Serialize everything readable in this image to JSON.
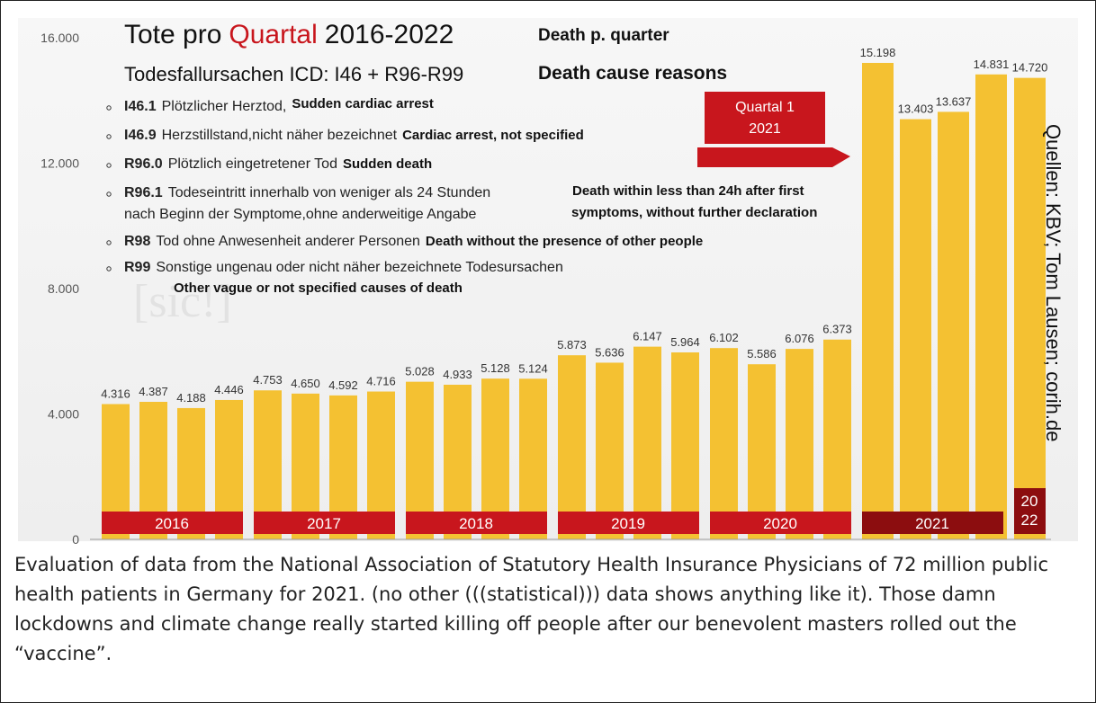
{
  "chart_data": {
    "type": "bar",
    "title_parts": [
      "Tote pro",
      "Quartal",
      "2016-2022"
    ],
    "title_en": "Death p. quarter",
    "subtitle": "Todesfallursachen ICD: I46 + R96-R99",
    "subtitle_en": "Death cause reasons",
    "causes": [
      {
        "code": "I46.1",
        "german": [
          "Plötzlicher Herztod,"
        ],
        "english": [
          "Sudden cardiac arrest"
        ]
      },
      {
        "code": "I46.9",
        "german": [
          "Herzstillstand,nicht näher bezeichnet"
        ],
        "english": [
          "Cardiac arrest, not specified"
        ]
      },
      {
        "code": "R96.0",
        "german": [
          "Plötzlich eingetretener Tod"
        ],
        "english": [
          "Sudden death"
        ]
      },
      {
        "code": "R96.1",
        "german": [
          "Todeseintritt innerhalb von weniger als 24 Stunden",
          "nach Beginn der Symptome,ohne anderweitige Angabe"
        ],
        "english": [
          "Death within less than 24h after first",
          "symptoms, without further declaration"
        ]
      },
      {
        "code": "R98",
        "german": [
          "Tod ohne Anwesenheit anderer Personen"
        ],
        "english": [
          "Death without the presence of other people"
        ]
      },
      {
        "code": "R99",
        "german": [
          "Sonstige ungenau oder nicht näher bezeichnete Todesursachen"
        ],
        "english": [
          "Other vague or not specified causes of death"
        ]
      }
    ],
    "quarter_note": [
      "Quartal 1",
      "2021"
    ],
    "watermark": "[sic!]",
    "source": "Quellen:  KBV; Tom Lausen; corih.de",
    "categories": [
      null,
      null,
      null,
      null,
      null,
      null,
      null,
      null,
      null,
      null,
      null,
      null,
      null,
      null,
      null,
      null,
      null,
      null,
      null,
      null,
      null,
      null,
      null,
      null,
      null
    ],
    "values": [
      4316,
      4387,
      4188,
      4446,
      4753,
      4650,
      4592,
      4716,
      5028,
      4933,
      5128,
      5124,
      5873,
      5636,
      6147,
      5964,
      6102,
      5586,
      6076,
      6373,
      15198,
      13403,
      13637,
      14831,
      14720
    ],
    "value_labels": [
      "4.316",
      "4.387",
      "4.188",
      "4.446",
      "4.753",
      "4.650",
      "4.592",
      "4.716",
      "5.028",
      "4.933",
      "5.128",
      "5.124",
      "5.873",
      "5.636",
      "6.147",
      "5.964",
      "6.102",
      "5.586",
      "6.076",
      "6.373",
      "15.198",
      "13.403",
      "13.637",
      "14.831",
      "14.720"
    ],
    "color": "#f4c132",
    "groups": [
      "2016",
      "2017",
      "2018",
      "2019",
      "2020",
      "2021",
      "2022"
    ],
    "group_colors": [
      "#c8161d",
      "#c8161d",
      "#c8161d",
      "#c8161d",
      "#c8161d",
      "#8c0d0f",
      "#8c0d0f"
    ],
    "ylim": [
      0,
      16000
    ],
    "yticks": [
      0,
      {
        "value": 4000,
        "label": "4.000"
      },
      {
        "value": 8000,
        "label": "8.000"
      },
      {
        "value": 12000,
        "label": "12.000"
      },
      {
        "value": 16000,
        "label": "16.000"
      }
    ],
    "caption": "Evaluation of data from the National Association of Statutory Health Insurance Physicians of 72 million public health patients in Germany for 2021. (no other (((statistical))) data shows anything like it). Those damn lockdowns and climate change really started killing off people after our benevolent masters rolled out the “vaccine”."
  }
}
